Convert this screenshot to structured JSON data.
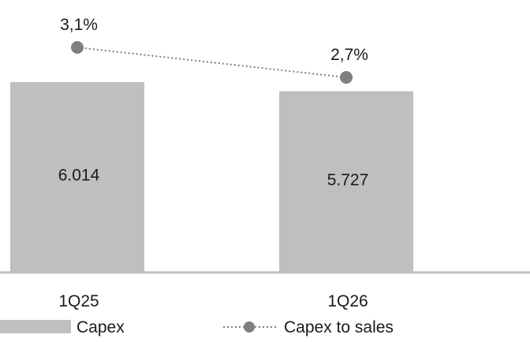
{
  "chart_data": {
    "type": "bar",
    "categories": [
      "1Q25",
      "1Q26"
    ],
    "series": [
      {
        "name": "Capex",
        "kind": "bar",
        "values": [
          6014,
          5727
        ],
        "labels": [
          "6.014",
          "5.727"
        ],
        "color": "#bfbfbf"
      },
      {
        "name": "Capex to sales",
        "kind": "line",
        "values": [
          3.1,
          2.7
        ],
        "labels": [
          "3,1%",
          "2,7%"
        ],
        "color": "#808080",
        "line_style": "dotted"
      }
    ],
    "legend": {
      "position": "bottom-left",
      "items": [
        "Capex",
        "Capex to sales"
      ]
    },
    "axis_color": "#bfbfbf",
    "title": "",
    "xlabel": "",
    "ylabel": "",
    "grid": false
  }
}
